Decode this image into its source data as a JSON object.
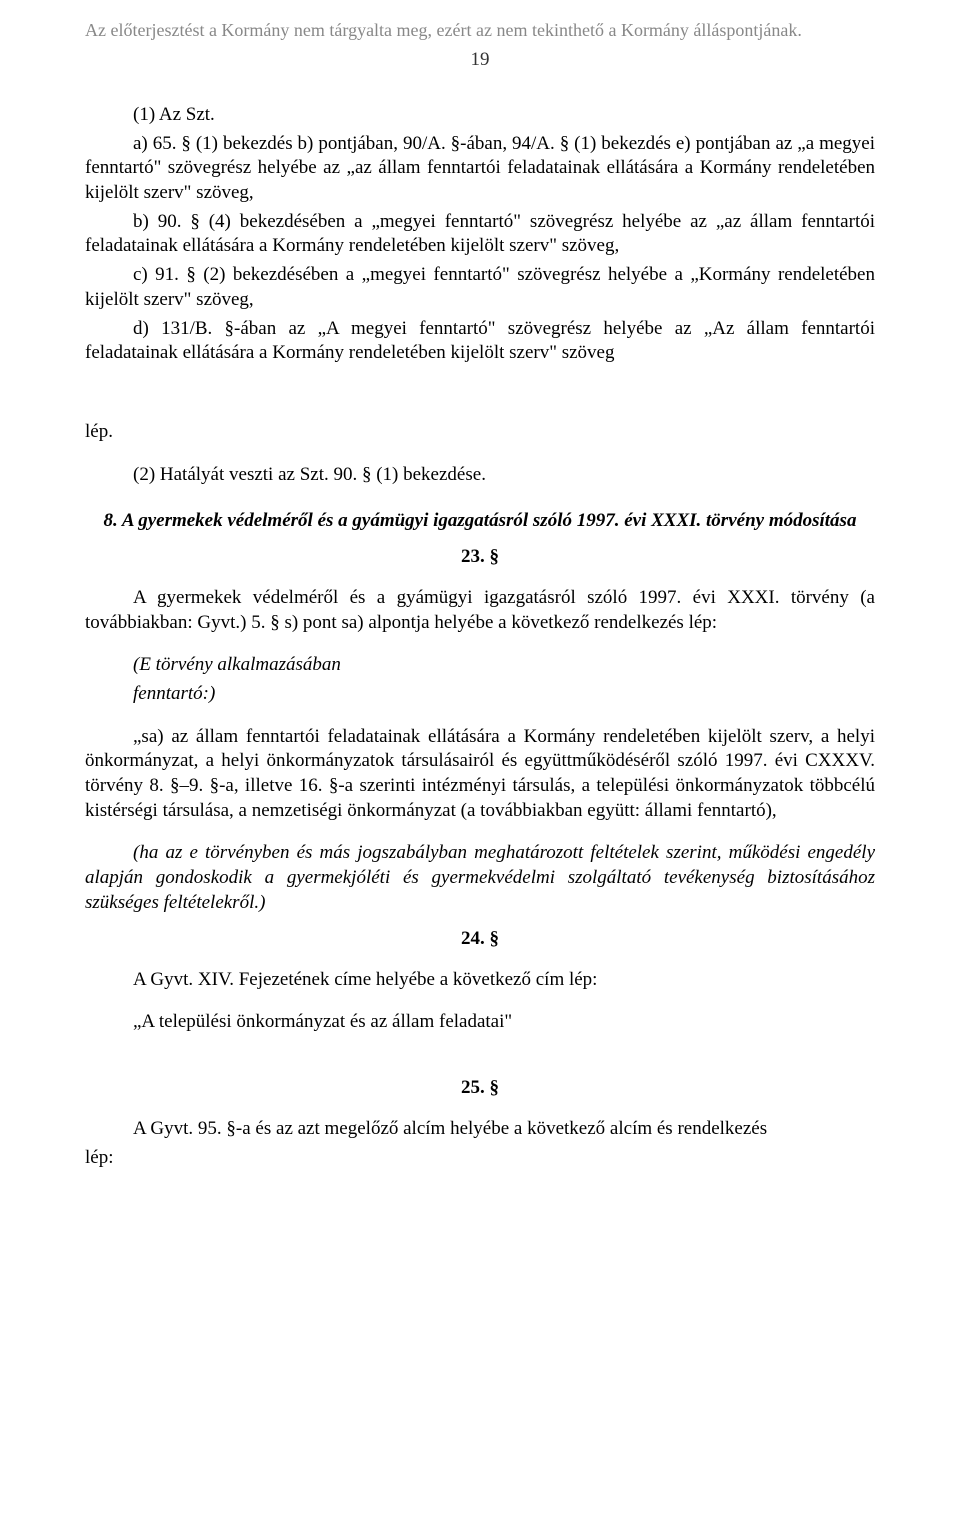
{
  "header": {
    "note": "Az előterjesztést a Kormány nem tárgyalta meg, ezért az nem tekinthető a Kormány álláspontjának.",
    "page_number": "19"
  },
  "p1": {
    "l1": "(1) Az Szt.",
    "l2": "a) 65. § (1) bekezdés b) pontjában, 90/A. §-ában, 94/A. § (1) bekezdés e) pontjában az „a megyei fenntartó\" szövegrész helyébe az „az állam fenntartói feladatainak ellátására a Kormány rendeletében kijelölt szerv\" szöveg,",
    "l3": "b) 90. § (4) bekezdésében a „megyei fenntartó\" szövegrész helyébe az „az állam fenntartói feladatainak ellátására a Kormány rendeletében kijelölt szerv\" szöveg,",
    "l4": "c) 91. § (2) bekezdésében a „megyei fenntartó\" szövegrész helyébe a „Kormány rendeletében kijelölt szerv\" szöveg,",
    "l5": "d) 131/B. §-ában az „A megyei fenntartó\" szövegrész helyébe az „Az állam fenntartói feladatainak ellátására a Kormány rendeletében kijelölt szerv\" szöveg"
  },
  "p2": "lép.",
  "p3": "(2) Hatályát veszti az Szt. 90. § (1) bekezdése.",
  "section8": {
    "title": "8. A gyermekek védelméről és a gyámügyi igazgatásról szóló 1997. évi XXXI. törvény módosítása",
    "num23": "23. §",
    "p1": "A gyermekek védelméről és a gyámügyi igazgatásról szóló 1997. évi XXXI. törvény (a továbbiakban: Gyvt.) 5. § s) pont sa) alpontja helyébe a következő rendelkezés lép:",
    "p2a": "(E törvény alkalmazásában",
    "p2b": "fenntartó:)",
    "p3": "„sa) az állam fenntartói feladatainak ellátására a Kormány rendeletében kijelölt szerv, a helyi önkormányzat, a helyi önkormányzatok társulásairól és együttműködéséről szóló 1997. évi CXXXV. törvény 8. §–9. §-a, illetve 16. §-a szerinti intézményi társulás, a települési önkormányzatok többcélú kistérségi társulása, a nemzetiségi önkormányzat (a továbbiakban együtt: állami fenntartó),",
    "p4": "(ha az e törvényben és más jogszabályban meghatározott feltételek szerint, működési engedély alapján gondoskodik a gyermekjóléti és gyermekvédelmi szolgáltató tevékenység biztosításához szükséges feltételekről.)",
    "num24": "24. §",
    "p5": "A Gyvt. XIV. Fejezetének címe helyébe a következő cím lép:",
    "p6": "„A települési önkormányzat és az állam feladatai\"",
    "num25": "25. §",
    "p7a": "A Gyvt. 95. §-a és az azt megelőző alcím helyébe a következő alcím és rendelkezés",
    "p7b": "lép:"
  }
}
